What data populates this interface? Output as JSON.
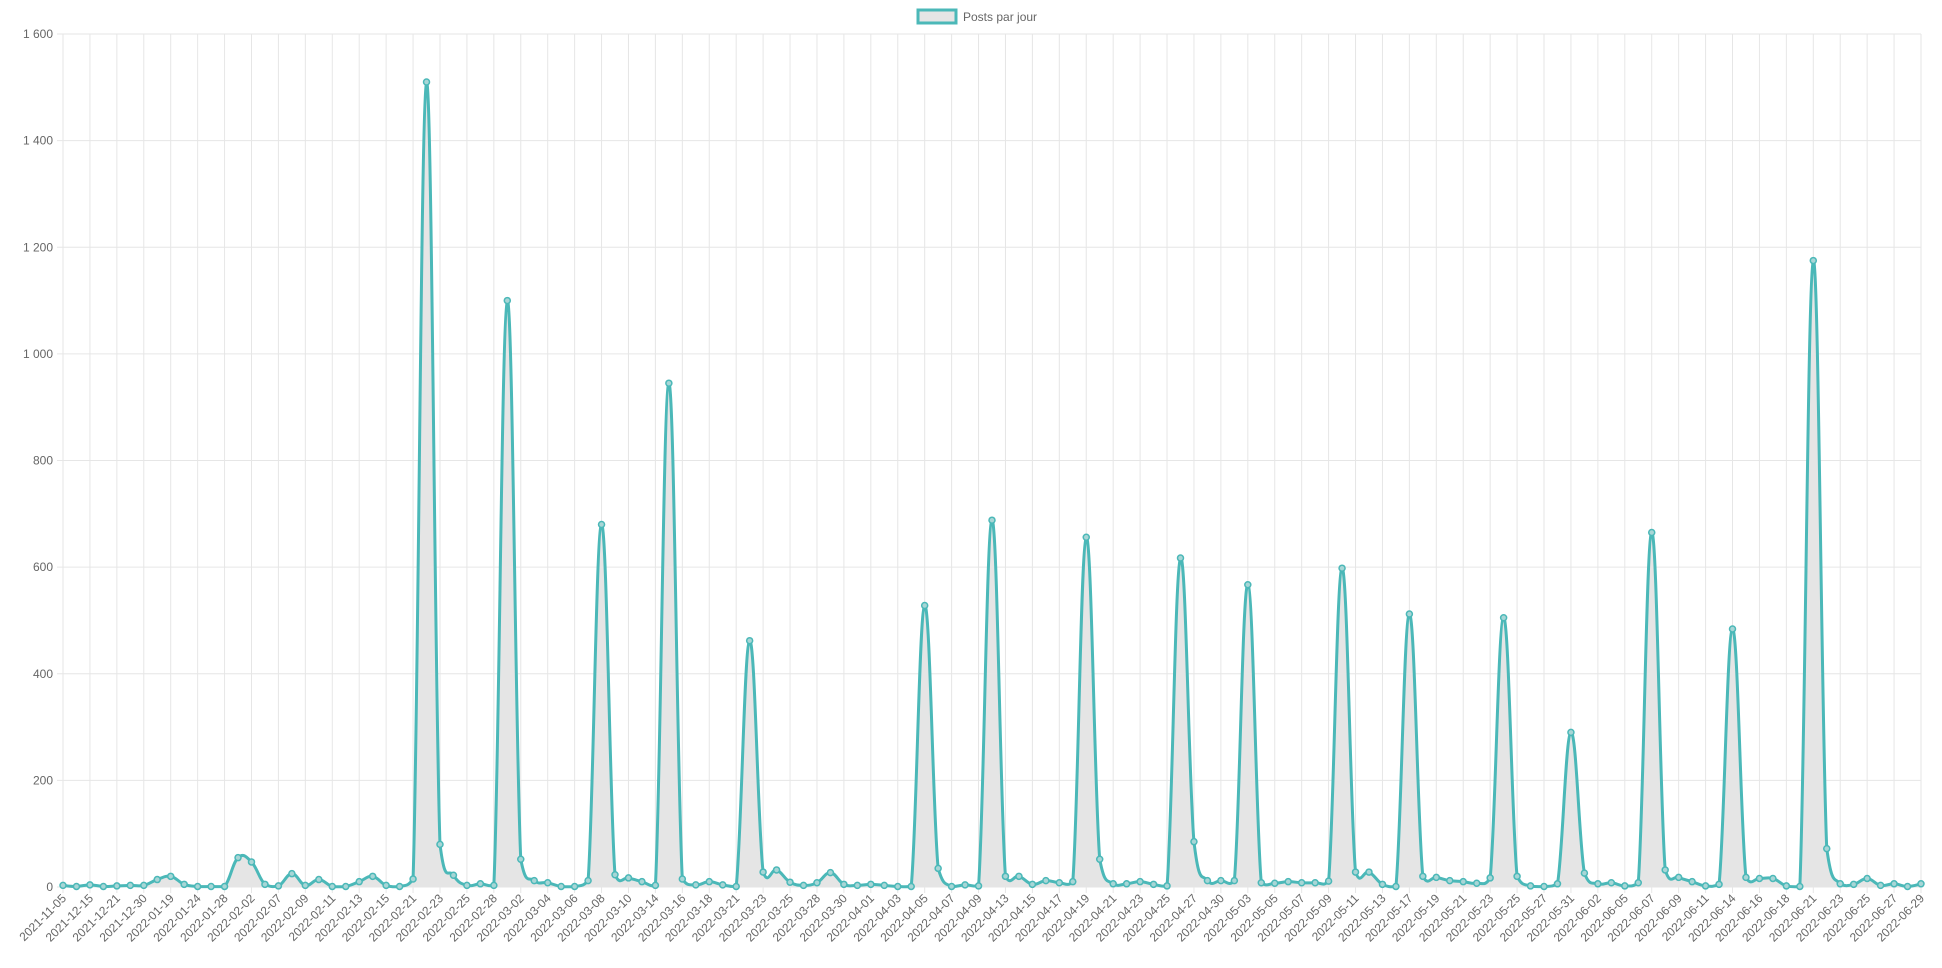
{
  "chart_data": {
    "type": "area",
    "legend": {
      "position": "top",
      "label": "Posts par jour"
    },
    "colors": {
      "line": "#4bb8b8",
      "fill": "#e5e5e5",
      "grid": "#e6e6e6",
      "text": "#666666"
    },
    "grid": true,
    "ylim": [
      0,
      1600
    ],
    "y_ticks": [
      0,
      200,
      400,
      600,
      800,
      1000,
      1200,
      1400,
      1600
    ],
    "y_tick_labels": [
      "0",
      "200",
      "400",
      "600",
      "800",
      "1 000",
      "1 200",
      "1 400",
      "1 600"
    ],
    "x_tick_labels": [
      "2021-11-05",
      "2021-12-15",
      "2021-12-21",
      "2021-12-30",
      "2022-01-19",
      "2022-01-24",
      "2022-01-28",
      "2022-02-02",
      "2022-02-07",
      "2022-02-09",
      "2022-02-11",
      "2022-02-13",
      "2022-02-15",
      "2022-02-21",
      "2022-02-23",
      "2022-02-25",
      "2022-02-28",
      "2022-03-02",
      "2022-03-04",
      "2022-03-06",
      "2022-03-08",
      "2022-03-10",
      "2022-03-14",
      "2022-03-16",
      "2022-03-18",
      "2022-03-21",
      "2022-03-23",
      "2022-03-25",
      "2022-03-28",
      "2022-03-30",
      "2022-04-01",
      "2022-04-03",
      "2022-04-05",
      "2022-04-07",
      "2022-04-09",
      "2022-04-13",
      "2022-04-15",
      "2022-04-17",
      "2022-04-19",
      "2022-04-21",
      "2022-04-23",
      "2022-04-25",
      "2022-04-27",
      "2022-04-30",
      "2022-05-03",
      "2022-05-05",
      "2022-05-07",
      "2022-05-09",
      "2022-05-11",
      "2022-05-13",
      "2022-05-17",
      "2022-05-19",
      "2022-05-21",
      "2022-05-23",
      "2022-05-25",
      "2022-05-27",
      "2022-05-31",
      "2022-06-02",
      "2022-06-05",
      "2022-06-07",
      "2022-06-09",
      "2022-06-11",
      "2022-06-14",
      "2022-06-16",
      "2022-06-18",
      "2022-06-21",
      "2022-06-23",
      "2022-06-25",
      "2022-06-27",
      "2022-06-29"
    ],
    "series": [
      {
        "name": "Posts par jour",
        "values": [
          3,
          1,
          4,
          1,
          2,
          3,
          3,
          14,
          20,
          5,
          1,
          1,
          1,
          55,
          47,
          5,
          2,
          25,
          3,
          14,
          1,
          1,
          10,
          20,
          3,
          1,
          15,
          1510,
          80,
          22,
          3,
          6,
          3,
          1100,
          52,
          12,
          8,
          1,
          1,
          12,
          680,
          23,
          17,
          10,
          3,
          945,
          15,
          4,
          10,
          4,
          1,
          462,
          28,
          32,
          9,
          3,
          8,
          27,
          5,
          3,
          5,
          3,
          1,
          1,
          528,
          35,
          1,
          4,
          2,
          688,
          20,
          20,
          5,
          12,
          8,
          10,
          656,
          52,
          6,
          6,
          10,
          5,
          2,
          617,
          85,
          12,
          12,
          12,
          567,
          8,
          7,
          10,
          8,
          8,
          11,
          598,
          28,
          28,
          5,
          1,
          512,
          20,
          18,
          12,
          10,
          7,
          17,
          505,
          20,
          2,
          1,
          6,
          290,
          26,
          6,
          8,
          2,
          8,
          665,
          32,
          18,
          10,
          2,
          5,
          484,
          18,
          16,
          16,
          2,
          1,
          1175,
          72,
          6,
          5,
          16,
          3,
          6,
          1,
          6
        ]
      }
    ]
  }
}
